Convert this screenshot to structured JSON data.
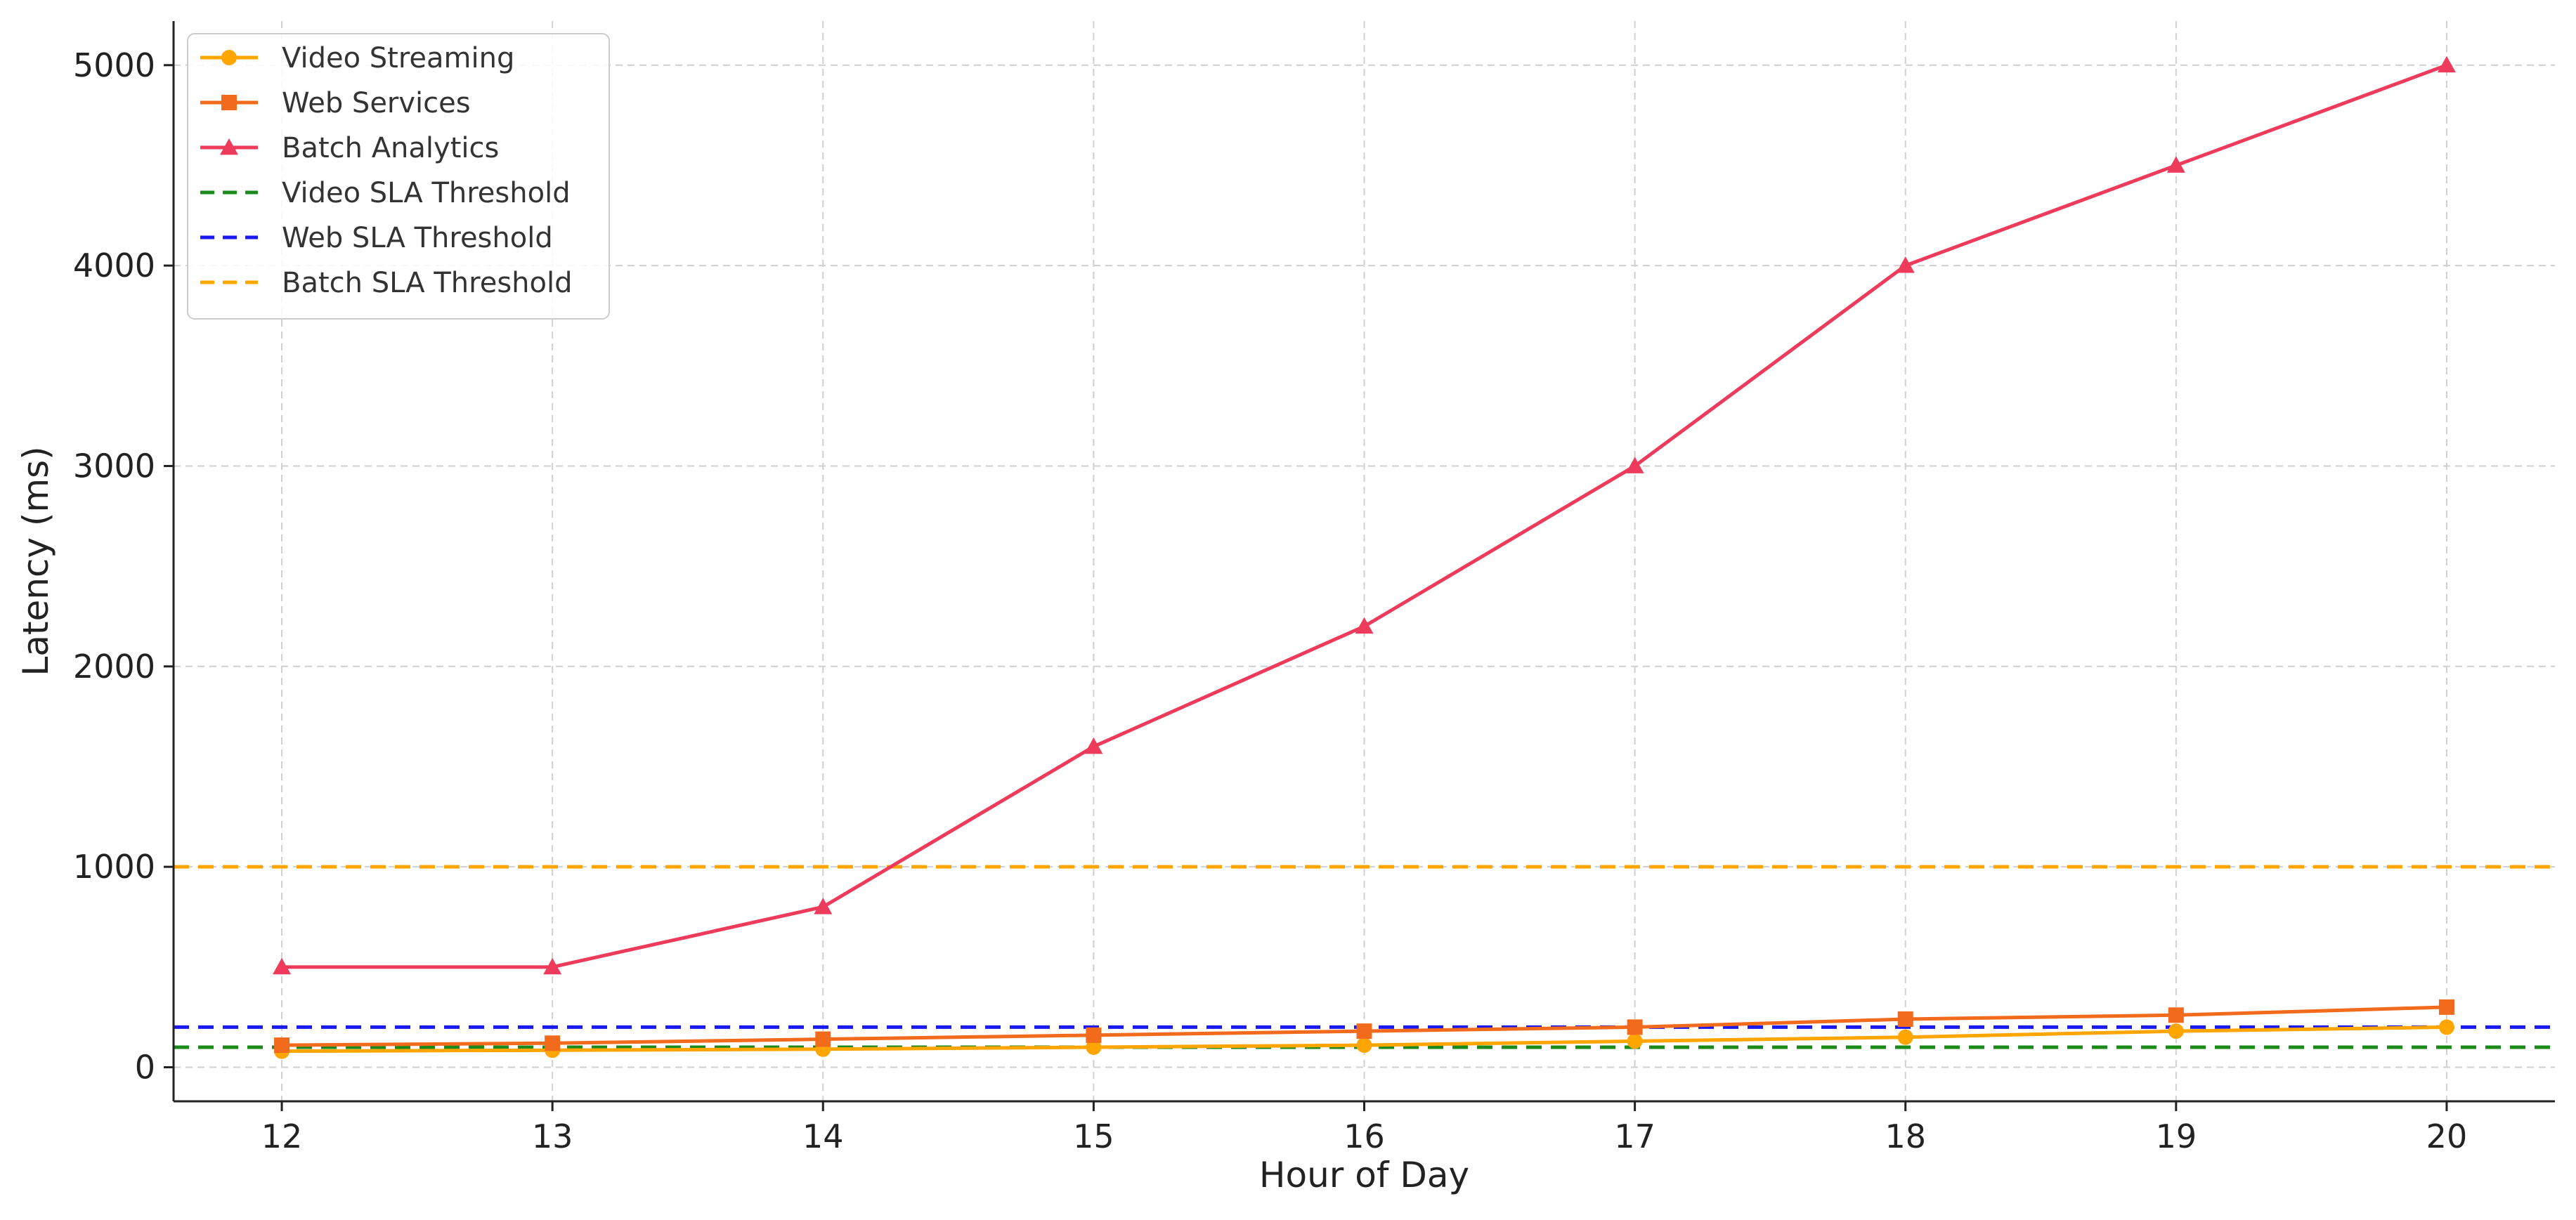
{
  "chart_data": {
    "type": "line",
    "xlabel": "Hour of Day",
    "ylabel": "Latency (ms)",
    "x": [
      12,
      13,
      14,
      15,
      16,
      17,
      18,
      19,
      20
    ],
    "xlim": [
      11.6,
      20.4
    ],
    "ylim": [
      -170,
      5220
    ],
    "xticks": [
      12,
      13,
      14,
      15,
      16,
      17,
      18,
      19,
      20
    ],
    "yticks": [
      0,
      1000,
      2000,
      3000,
      4000,
      5000
    ],
    "grid": true,
    "legend_position": "upper-left",
    "series": [
      {
        "name": "Video Streaming",
        "color": "#FFA500",
        "marker": "circle",
        "values": [
          80,
          85,
          90,
          100,
          110,
          130,
          150,
          180,
          200
        ]
      },
      {
        "name": "Web Services",
        "color": "#F26B1D",
        "marker": "square",
        "values": [
          110,
          120,
          140,
          160,
          180,
          200,
          240,
          260,
          300
        ]
      },
      {
        "name": "Batch Analytics",
        "color": "#EE3B5B",
        "marker": "triangle",
        "values": [
          500,
          500,
          800,
          1600,
          2200,
          3000,
          4000,
          4500,
          5000
        ]
      }
    ],
    "thresholds": [
      {
        "name": "Video SLA Threshold",
        "value": 100,
        "color": "#1A8A1A"
      },
      {
        "name": "Web SLA Threshold",
        "value": 200,
        "color": "#1A1AF0"
      },
      {
        "name": "Batch SLA Threshold",
        "value": 1000,
        "color": "#FFA500"
      }
    ]
  }
}
